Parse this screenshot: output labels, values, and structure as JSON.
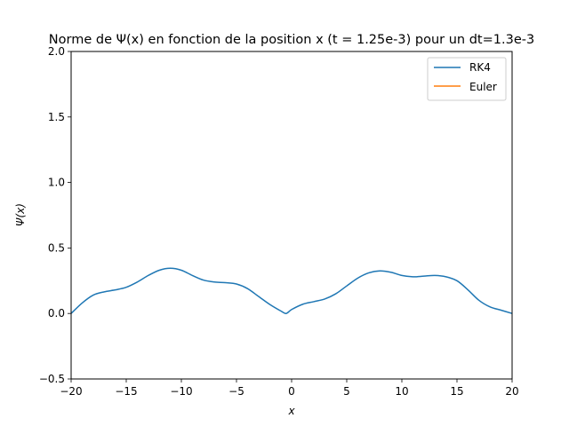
{
  "chart_data": {
    "type": "line",
    "title": "Norme de Ψ(x) en fonction de la position x (t = 1.25e-3) pour un dt=1.3e-3",
    "xlabel": "x",
    "ylabel": "Ψ(x)",
    "xlim": [
      -20,
      20
    ],
    "ylim": [
      -0.5,
      2.0
    ],
    "xticks": [
      -20,
      -15,
      -10,
      -5,
      0,
      5,
      10,
      15,
      20
    ],
    "xtick_labels": [
      "−20",
      "−15",
      "−10",
      "−5",
      "0",
      "5",
      "10",
      "15",
      "20"
    ],
    "yticks": [
      -0.5,
      0.0,
      0.5,
      1.0,
      1.5,
      2.0
    ],
    "ytick_labels": [
      "−0.5",
      "0.0",
      "0.5",
      "1.0",
      "1.5",
      "2.0"
    ],
    "grid": false,
    "legend_position": "top-right",
    "series": [
      {
        "name": "RK4",
        "color": "#1f77b4",
        "x": [
          -20,
          -19,
          -18,
          -17,
          -16,
          -15,
          -14,
          -13,
          -12,
          -11,
          -10,
          -9,
          -8,
          -7,
          -6,
          -5,
          -4,
          -3,
          -2,
          -1,
          -0.5,
          0,
          1,
          2,
          3,
          4,
          5,
          6,
          7,
          8,
          9,
          10,
          11,
          12,
          13,
          14,
          15,
          16,
          17,
          18,
          19,
          20
        ],
        "y": [
          0.0,
          0.08,
          0.14,
          0.165,
          0.18,
          0.2,
          0.24,
          0.29,
          0.33,
          0.345,
          0.33,
          0.29,
          0.255,
          0.24,
          0.235,
          0.225,
          0.19,
          0.13,
          0.07,
          0.02,
          0.0,
          0.03,
          0.07,
          0.09,
          0.11,
          0.15,
          0.21,
          0.27,
          0.31,
          0.325,
          0.315,
          0.29,
          0.28,
          0.285,
          0.29,
          0.28,
          0.25,
          0.18,
          0.1,
          0.05,
          0.025,
          0.0
        ]
      },
      {
        "name": "Euler",
        "color": "#ff7f0e",
        "x": [],
        "y": []
      }
    ]
  }
}
